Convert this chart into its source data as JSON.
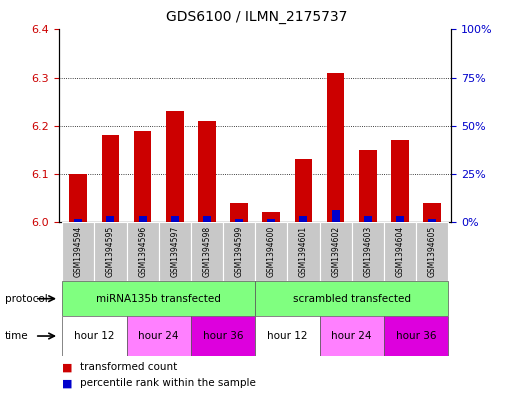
{
  "title": "GDS6100 / ILMN_2175737",
  "samples": [
    "GSM1394594",
    "GSM1394595",
    "GSM1394596",
    "GSM1394597",
    "GSM1394598",
    "GSM1394599",
    "GSM1394600",
    "GSM1394601",
    "GSM1394602",
    "GSM1394603",
    "GSM1394604",
    "GSM1394605"
  ],
  "red_values": [
    6.1,
    6.18,
    6.19,
    6.23,
    6.21,
    6.04,
    6.02,
    6.13,
    6.31,
    6.15,
    6.17,
    6.04
  ],
  "blue_pct": [
    1.5,
    3.0,
    3.0,
    3.0,
    3.0,
    1.5,
    1.5,
    3.0,
    6.0,
    3.0,
    3.0,
    1.5
  ],
  "ylim_left": [
    6.0,
    6.4
  ],
  "ylim_right": [
    0,
    100
  ],
  "yticks_left": [
    6.0,
    6.1,
    6.2,
    6.3,
    6.4
  ],
  "yticks_right": [
    0,
    25,
    50,
    75,
    100
  ],
  "ytick_labels_right": [
    "0%",
    "25%",
    "50%",
    "75%",
    "100%"
  ],
  "bar_width": 0.55,
  "red_color": "#CC0000",
  "blue_color": "#0000CC",
  "base_value": 6.0,
  "bg_color": "#ffffff",
  "sample_bg": "#C8C8C8",
  "protocol_color": "#80FF80",
  "time_colors": [
    "#FFFFFF",
    "#FF80FF",
    "#DD00DD"
  ],
  "time_labels": [
    "hour 12",
    "hour 24",
    "hour 36"
  ],
  "legend_red": "transformed count",
  "legend_blue": "percentile rank within the sample",
  "left_tick_color": "#CC0000",
  "right_tick_color": "#0000CC",
  "grid_yticks": [
    6.1,
    6.2,
    6.3
  ]
}
